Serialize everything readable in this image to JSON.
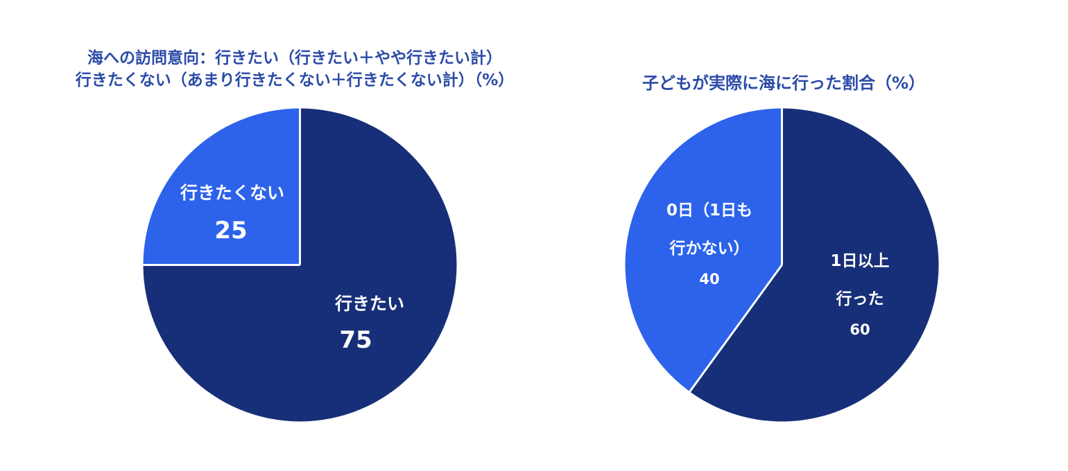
{
  "colors": {
    "dark": "#172f78",
    "bright": "#2d63eb",
    "title": "#2b4aa8",
    "separator": "#ffffff"
  },
  "chart_data": [
    {
      "type": "pie",
      "title_lines": [
        "海への訪問意向：行きたい（行きたい＋やや行きたい計）",
        "行きたくない（あまり行きたくない＋行きたくない計）（%）"
      ],
      "slices": [
        {
          "label": "行きたい",
          "value": 75,
          "value_label": "75",
          "color": "#172f78"
        },
        {
          "label": "行きたくない",
          "value": 25,
          "value_label": "25",
          "color": "#2d63eb"
        }
      ]
    },
    {
      "type": "pie",
      "title_lines": [
        "子どもが実際に海に行った割合（%）"
      ],
      "slices": [
        {
          "label_lines": [
            "1日以上",
            "行った"
          ],
          "value": 60,
          "value_label": "60",
          "color": "#172f78"
        },
        {
          "label_lines": [
            "0日（1日も",
            "行かない）"
          ],
          "value": 40,
          "value_label": "40",
          "color": "#2d63eb"
        }
      ]
    }
  ]
}
